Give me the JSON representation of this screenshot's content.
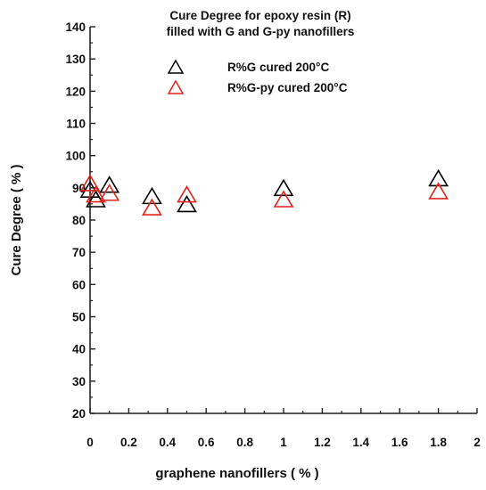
{
  "chart_data": {
    "type": "scatter",
    "title_line1": "Cure Degree for epoxy resin (R)",
    "title_line2": "filled with G and G-py nanofillers",
    "xlabel": "graphene nanofillers  ( % )",
    "ylabel": "Cure Degree  ( % )",
    "xlim": [
      0,
      2
    ],
    "ylim": [
      20,
      140
    ],
    "x_ticks": [
      "0",
      "0.2",
      "0.4",
      "0.6",
      "0.8",
      "1",
      "1.2",
      "1.4",
      "1.6",
      "1.8",
      "2"
    ],
    "y_ticks": [
      "20",
      "30",
      "40",
      "50",
      "60",
      "70",
      "80",
      "90",
      "100",
      "110",
      "120",
      "130",
      "140"
    ],
    "legend_position": "top-right",
    "series": [
      {
        "name": "R%G cured 200°C",
        "color": "#000000",
        "marker": "triangle-open",
        "points": [
          {
            "x": 0.0,
            "y": 89.5
          },
          {
            "x": 0.03,
            "y": 86.5
          },
          {
            "x": 0.1,
            "y": 91.0
          },
          {
            "x": 0.32,
            "y": 87.5
          },
          {
            "x": 0.5,
            "y": 85.0
          },
          {
            "x": 1.0,
            "y": 90.0
          },
          {
            "x": 1.8,
            "y": 93.0
          }
        ]
      },
      {
        "name": "R%G-py cured 200°C",
        "color": "#e0241b",
        "marker": "triangle-open",
        "points": [
          {
            "x": 0.0,
            "y": 91.5
          },
          {
            "x": 0.03,
            "y": 88.0
          },
          {
            "x": 0.1,
            "y": 88.5
          },
          {
            "x": 0.32,
            "y": 84.0
          },
          {
            "x": 0.5,
            "y": 88.0
          },
          {
            "x": 1.0,
            "y": 86.5
          },
          {
            "x": 1.8,
            "y": 89.0
          }
        ]
      }
    ]
  }
}
